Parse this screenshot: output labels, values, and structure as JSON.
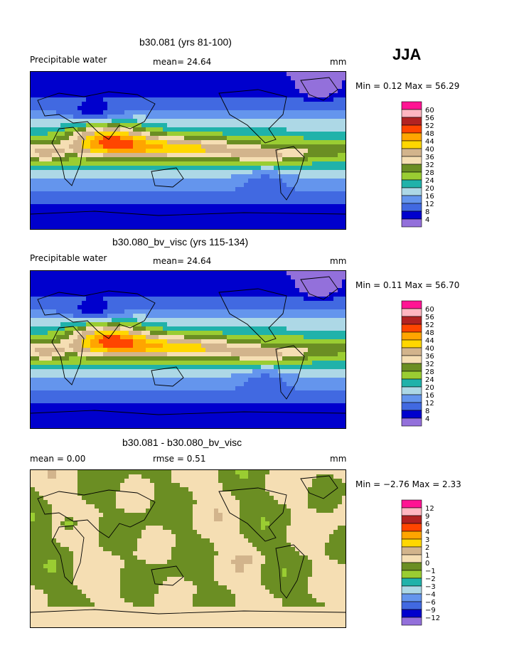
{
  "season": "JJA",
  "palette_abs": [
    "#9370db",
    "#0000cd",
    "#4169e1",
    "#6495ed",
    "#add8e6",
    "#20b2aa",
    "#9acd32",
    "#6b8e23",
    "#f5deb3",
    "#d2b48c",
    "#ffd700",
    "#ffa500",
    "#ff4500",
    "#b22222",
    "#ffb6c1",
    "#ff1493"
  ],
  "palette_diff": [
    "#9370db",
    "#0000cd",
    "#4169e1",
    "#6495ed",
    "#add8e6",
    "#20b2aa",
    "#9acd32",
    "#6b8e23",
    "#f5deb3",
    "#d2b48c",
    "#ffd700",
    "#ffa500",
    "#ff4500",
    "#b22222",
    "#ffb6c1",
    "#ff1493"
  ],
  "panels": [
    {
      "title": "b30.081 (yrs 81-100)",
      "left_label": "Precipitable water",
      "center_label": "mean=  24.64",
      "units": "mm",
      "minmax": "Min =   0.12 Max =  56.29",
      "legend_levels": [
        "60",
        "56",
        "52",
        "48",
        "44",
        "40",
        "36",
        "32",
        "28",
        "24",
        "20",
        "16",
        "12",
        "8",
        "4"
      ],
      "kind": "abs"
    },
    {
      "title": "b30.080_bv_visc (yrs 115-134)",
      "left_label": "Precipitable water",
      "center_label": "mean=  24.64",
      "units": "mm",
      "minmax": "Min =   0.11 Max =  56.70",
      "legend_levels": [
        "60",
        "56",
        "52",
        "48",
        "44",
        "40",
        "36",
        "32",
        "28",
        "24",
        "20",
        "16",
        "12",
        "8",
        "4"
      ],
      "kind": "abs"
    },
    {
      "title": "b30.081 - b30.080_bv_visc",
      "left_label": "mean =    0.00",
      "center_label": "rmse =    0.51",
      "units": "mm",
      "minmax": "Min =  −2.76 Max =   2.33",
      "legend_levels": [
        "12",
        "9",
        "6",
        "4",
        "3",
        "2",
        "1",
        "0",
        "−1",
        "−2",
        "−3",
        "−4",
        "−6",
        "−9",
        "−12"
      ],
      "kind": "diff"
    }
  ],
  "chart_data": {
    "type": "heatmap",
    "title": "JJA",
    "maps": [
      {
        "name": "b30.081 (yrs 81-100)",
        "variable": "Precipitable water",
        "units": "mm",
        "mean": 24.64,
        "min": 0.12,
        "max": 56.29,
        "contour_levels": [
          4,
          8,
          12,
          16,
          20,
          24,
          28,
          32,
          36,
          40,
          44,
          48,
          52,
          56,
          60
        ]
      },
      {
        "name": "b30.080_bv_visc (yrs 115-134)",
        "variable": "Precipitable water",
        "units": "mm",
        "mean": 24.64,
        "min": 0.11,
        "max": 56.7,
        "contour_levels": [
          4,
          8,
          12,
          16,
          20,
          24,
          28,
          32,
          36,
          40,
          44,
          48,
          52,
          56,
          60
        ]
      },
      {
        "name": "b30.081 - b30.080_bv_visc",
        "units": "mm",
        "mean": 0.0,
        "rmse": 0.51,
        "min": -2.76,
        "max": 2.33,
        "contour_levels": [
          -12,
          -9,
          -6,
          -4,
          -3,
          -2,
          -1,
          0,
          1,
          2,
          3,
          4,
          6,
          9,
          12
        ]
      }
    ]
  }
}
